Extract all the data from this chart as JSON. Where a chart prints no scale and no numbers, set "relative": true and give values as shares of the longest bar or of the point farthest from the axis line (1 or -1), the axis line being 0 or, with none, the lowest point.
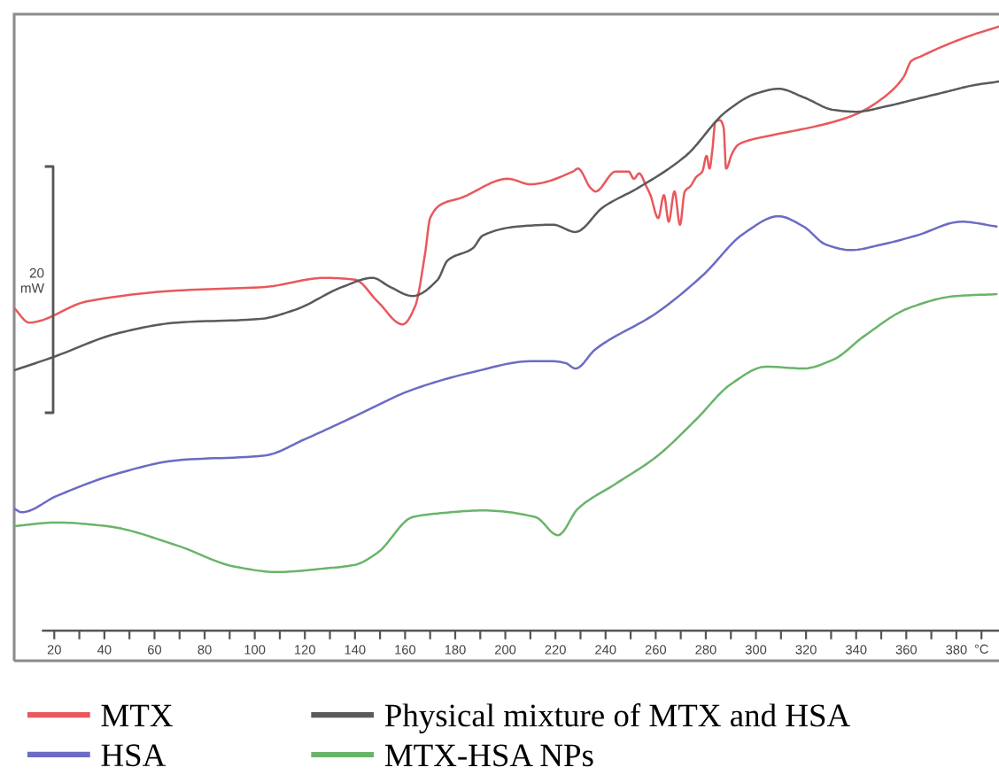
{
  "chart_data": {
    "type": "line",
    "relative": true,
    "xlabel": "°C",
    "legend": "bottom",
    "annotations": [
      "20\nmW"
    ],
    "xlim": [
      4,
      397
    ],
    "xticks": [
      20,
      {
        "value": 30,
        "label": null
      },
      40,
      {
        "value": 50,
        "label": null
      },
      60,
      {
        "value": 70,
        "label": null
      },
      80,
      {
        "value": 90,
        "label": null
      },
      100,
      {
        "value": 110,
        "label": null
      },
      120,
      {
        "value": 130,
        "label": null
      },
      140,
      {
        "value": 150,
        "label": null
      },
      160,
      {
        "value": 170,
        "label": null
      },
      180,
      {
        "value": 190,
        "label": null
      },
      200,
      {
        "value": 210,
        "label": null
      },
      220,
      {
        "value": 230,
        "label": null
      },
      240,
      {
        "value": 250,
        "label": null
      },
      260,
      {
        "value": 270,
        "label": null
      },
      280,
      {
        "value": 290,
        "label": null
      },
      300,
      {
        "value": 310,
        "label": null
      },
      320,
      {
        "value": 330,
        "label": null
      },
      340,
      {
        "value": 350,
        "label": null
      },
      360,
      {
        "value": 370,
        "label": null
      },
      380,
      {
        "value": 390,
        "label": null
      }
    ],
    "series": [
      {
        "name": "MTX",
        "color": "#e8585c",
        "x": [
          4,
          10,
          33,
          69,
          104,
          128,
          140,
          149,
          159,
          164,
          168,
          170,
          175,
          182,
          201,
          210,
          227,
          229,
          234,
          236,
          244,
          249.2,
          251.3,
          253.4,
          256.2,
          257.9,
          261.0,
          263.3,
          265.2,
          267.5,
          269.7,
          271.6,
          273.9,
          276.2,
          278.6,
          280.3,
          281.5,
          282.6,
          283.8,
          285.7,
          287.1,
          288.1,
          290.4,
          292.8,
          297.5,
          305,
          328,
          340,
          352,
          359,
          362,
          366,
          375,
          387,
          397
        ],
        "values": [
          0.534,
          0.51,
          0.545,
          0.563,
          0.569,
          0.584,
          0.581,
          0.545,
          0.507,
          0.537,
          0.625,
          0.683,
          0.707,
          0.716,
          0.748,
          0.739,
          0.76,
          0.765,
          0.733,
          0.727,
          0.76,
          0.76,
          0.748,
          0.757,
          0.736,
          0.721,
          0.683,
          0.721,
          0.677,
          0.727,
          0.672,
          0.727,
          0.736,
          0.751,
          0.76,
          0.786,
          0.765,
          0.795,
          0.842,
          0.845,
          0.833,
          0.765,
          0.789,
          0.804,
          0.812,
          0.819,
          0.839,
          0.855,
          0.886,
          0.917,
          0.943,
          0.951,
          0.968,
          0.987,
          1.0
        ]
      },
      {
        "name": "HSA",
        "color": "#6b6bc4",
        "x": [
          4,
          7,
          21,
          46,
          69,
          104,
          120,
          140,
          163,
          187,
          210,
          219,
          224,
          228,
          236,
          260,
          279,
          295,
          309,
          319,
          328,
          338,
          350,
          364,
          382,
          396
        ],
        "values": [
          0.202,
          0.196,
          0.223,
          0.261,
          0.282,
          0.29,
          0.317,
          0.355,
          0.399,
          0.428,
          0.446,
          0.446,
          0.443,
          0.434,
          0.466,
          0.525,
          0.589,
          0.657,
          0.686,
          0.669,
          0.639,
          0.63,
          0.639,
          0.654,
          0.677,
          0.669
        ]
      },
      {
        "name": "Physical mixture of MTX and HSA",
        "color": "#5a5a5a",
        "x": [
          4,
          19,
          46,
          69,
          102,
          116,
          135,
          147,
          154,
          163,
          173,
          177,
          187,
          191,
          205,
          219,
          228,
          239,
          253,
          272,
          288,
          300,
          309,
          319,
          331,
          340,
          352,
          364,
          375,
          387,
          397
        ],
        "values": [
          0.431,
          0.452,
          0.493,
          0.51,
          0.516,
          0.531,
          0.569,
          0.584,
          0.569,
          0.554,
          0.581,
          0.613,
          0.633,
          0.654,
          0.669,
          0.672,
          0.66,
          0.701,
          0.733,
          0.786,
          0.859,
          0.889,
          0.897,
          0.883,
          0.862,
          0.859,
          0.868,
          0.88,
          0.891,
          0.903,
          0.909
        ]
      },
      {
        "name": "MTX-HSA NPs",
        "color": "#6ab46a",
        "x": [
          4,
          21,
          41,
          69,
          92,
          109,
          128,
          140,
          149,
          163,
          173,
          191,
          212,
          221,
          229,
          244,
          260,
          276,
          290,
          304,
          319,
          331,
          343,
          361,
          380,
          396
        ],
        "values": [
          0.173,
          0.179,
          0.173,
          0.141,
          0.106,
          0.097,
          0.103,
          0.109,
          0.129,
          0.188,
          0.194,
          0.199,
          0.188,
          0.158,
          0.202,
          0.243,
          0.287,
          0.349,
          0.408,
          0.437,
          0.434,
          0.449,
          0.487,
          0.534,
          0.554,
          0.557
        ]
      }
    ]
  }
}
